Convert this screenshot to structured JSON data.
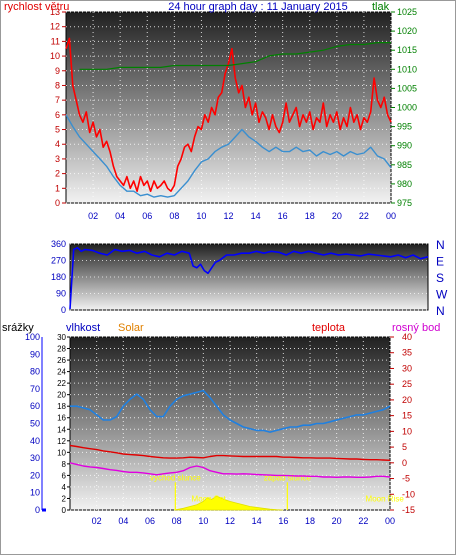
{
  "chart_data": [
    {
      "type": "line",
      "title": "24 hour graph day : 11 January 2015",
      "left_axis_label": "rychlost větru",
      "right_axis_label": "tlak",
      "y_left_lim": [
        0,
        13
      ],
      "y_left_ticks": [
        "0",
        "1",
        "2",
        "3",
        "4",
        "5",
        "6",
        "7",
        "8",
        "9",
        "10",
        "11",
        "12",
        "13"
      ],
      "y_right_lim": [
        975,
        1025
      ],
      "y_right_ticks": [
        "975",
        "980",
        "985",
        "990",
        "995",
        "1000",
        "1005",
        "1010",
        "1015",
        "1020",
        "1025"
      ],
      "x_lim": [
        0,
        24
      ],
      "x_ticks": [
        "02",
        "04",
        "06",
        "08",
        "10",
        "12",
        "14",
        "16",
        "18",
        "20",
        "22",
        "00"
      ],
      "grid": true,
      "colors": {
        "gust": "#ff0000",
        "average": "#3a8fd0",
        "pressure": "#008000"
      },
      "series": [
        {
          "axis": "left",
          "x": [
            0,
            0.25,
            0.5,
            0.75,
            1,
            1.25,
            1.5,
            1.75,
            2,
            2.25,
            2.5,
            2.75,
            3,
            3.25,
            3.5,
            3.75,
            4,
            4.25,
            4.5,
            4.75,
            5,
            5.25,
            5.5,
            5.75,
            6,
            6.25,
            6.5,
            6.75,
            7,
            7.25,
            7.5,
            7.75,
            8,
            8.25,
            8.5,
            8.75,
            9,
            9.25,
            9.5,
            9.75,
            10,
            10.25,
            10.5,
            10.75,
            11,
            11.25,
            11.5,
            11.75,
            12,
            12.25,
            12.5,
            12.75,
            13,
            13.25,
            13.5,
            13.75,
            14,
            14.25,
            14.5,
            14.75,
            15,
            15.25,
            15.5,
            15.75,
            16,
            16.25,
            16.5,
            16.75,
            17,
            17.25,
            17.5,
            17.75,
            18,
            18.25,
            18.5,
            18.75,
            19,
            19.25,
            19.5,
            19.75,
            20,
            20.25,
            20.5,
            20.75,
            21,
            21.25,
            21.5,
            21.75,
            22,
            22.25,
            22.5,
            22.75,
            23,
            23.25,
            23.5,
            23.75,
            24
          ],
          "y": [
            10.5,
            11.2,
            8,
            7,
            6,
            5.5,
            6.2,
            4.8,
            5.5,
            4.5,
            5,
            3.8,
            4.2,
            3.5,
            2.5,
            1.8,
            1.5,
            1.2,
            1.8,
            1,
            1.5,
            0.8,
            1.8,
            1.2,
            1.5,
            0.8,
            1.5,
            1,
            1.2,
            1.5,
            1,
            0.8,
            1.2,
            2.5,
            3,
            3.8,
            4,
            3.5,
            4.5,
            5.2,
            5,
            6,
            5.5,
            6.5,
            6,
            7.2,
            7.5,
            8.8,
            9.5,
            10.5,
            8.5,
            7.5,
            8,
            6.5,
            7.2,
            6,
            6.8,
            5.5,
            6.2,
            5.8,
            5,
            6,
            5.2,
            4.8,
            5.5,
            6.8,
            5.5,
            6,
            6.5,
            5.2,
            6,
            5.5,
            6.2,
            5,
            5.8,
            5.5,
            6.8,
            5.2,
            6,
            5.5,
            6.2,
            5,
            5.8,
            5.2,
            6.5,
            5.5,
            6,
            5,
            5.8,
            5.5,
            6.2,
            8.5,
            7,
            6.5,
            7.2,
            6,
            5.5
          ]
        },
        {
          "axis": "left",
          "x": [
            0,
            0.5,
            1,
            1.5,
            2,
            2.5,
            3,
            3.5,
            4,
            4.5,
            5,
            5.5,
            6,
            6.5,
            7,
            7.5,
            8,
            8.5,
            9,
            9.5,
            10,
            10.5,
            11,
            11.5,
            12,
            12.5,
            13,
            13.5,
            14,
            14.5,
            15,
            15.5,
            16,
            16.5,
            17,
            17.5,
            18,
            18.5,
            19,
            19.5,
            20,
            20.5,
            21,
            21.5,
            22,
            22.5,
            23,
            23.5,
            24
          ],
          "y": [
            6,
            5.2,
            4.5,
            4,
            3.5,
            3,
            2.5,
            1.8,
            1.2,
            0.8,
            0.8,
            0.5,
            0.6,
            0.4,
            0.5,
            0.4,
            0.5,
            1,
            1.5,
            2.2,
            2.8,
            3,
            3.5,
            3.8,
            4,
            4.5,
            5,
            4.5,
            4.2,
            3.8,
            3.5,
            3.8,
            3.5,
            3.5,
            3.8,
            3.5,
            3.6,
            3.2,
            3.5,
            3.3,
            3.5,
            3.2,
            3.5,
            3.3,
            3.4,
            3.8,
            3.2,
            3,
            2.4
          ]
        },
        {
          "axis": "right",
          "x": [
            1,
            2,
            3,
            4,
            5,
            6,
            7,
            8,
            9,
            10,
            11,
            12,
            13,
            14,
            15,
            16,
            17,
            18,
            19,
            20,
            21,
            22,
            23,
            24
          ],
          "y": [
            1010,
            1010,
            1010,
            1010.5,
            1010.5,
            1010.5,
            1010.5,
            1011,
            1011,
            1011,
            1011,
            1011,
            1011.5,
            1012,
            1013.5,
            1014,
            1014,
            1014.5,
            1015,
            1016,
            1016.5,
            1016.5,
            1017,
            1017
          ]
        }
      ]
    },
    {
      "type": "line",
      "y_lim": [
        0,
        360
      ],
      "y_ticks": [
        "0",
        "90",
        "180",
        "270",
        "360"
      ],
      "right_labels": [
        "N",
        "W",
        "S",
        "E",
        "N"
      ],
      "x_lim": [
        0,
        24
      ],
      "colors": {
        "direction": "#0000ff"
      },
      "series": [
        {
          "x": [
            0,
            0.25,
            0.5,
            0.75,
            1,
            1.5,
            2,
            2.5,
            3,
            3.5,
            4,
            4.5,
            5,
            5.5,
            6,
            6.5,
            7,
            7.5,
            8,
            8.25,
            8.5,
            8.75,
            9,
            9.25,
            9.5,
            9.75,
            10,
            10.5,
            11,
            11.5,
            12,
            12.5,
            13,
            13.5,
            14,
            14.5,
            15,
            15.5,
            16,
            16.5,
            17,
            17.5,
            18,
            18.5,
            19,
            19.5,
            20,
            20.5,
            21,
            21.5,
            22,
            22.5,
            23,
            23.5,
            24
          ],
          "y": [
            5,
            330,
            340,
            320,
            330,
            325,
            310,
            300,
            330,
            320,
            325,
            310,
            320,
            300,
            290,
            310,
            300,
            320,
            310,
            240,
            230,
            250,
            215,
            200,
            230,
            260,
            270,
            300,
            300,
            310,
            310,
            320,
            310,
            320,
            315,
            300,
            320,
            310,
            320,
            310,
            300,
            310,
            300,
            305,
            300,
            295,
            305,
            300,
            295,
            290,
            300,
            285,
            300,
            280,
            290
          ]
        }
      ]
    },
    {
      "type": "line",
      "left_labels": [
        "srážky",
        "vlhkost",
        "Solar"
      ],
      "right_labels": [
        "teplota",
        "rosný bod"
      ],
      "precip_lim": [
        0,
        100
      ],
      "precip_ticks": [
        "0",
        "10",
        "20",
        "30",
        "40",
        "50",
        "60",
        "70",
        "80",
        "90",
        "100"
      ],
      "humidity_lim": [
        0,
        30
      ],
      "humidity_ticks": [
        "0",
        "2",
        "4",
        "6",
        "8",
        "10",
        "12",
        "14",
        "16",
        "18",
        "20",
        "22",
        "24",
        "26",
        "28",
        "30"
      ],
      "temp_lim": [
        -15,
        40
      ],
      "temp_ticks": [
        "-15",
        "-10",
        "-5",
        "0",
        "5",
        "10",
        "15",
        "20",
        "25",
        "30",
        "35",
        "40"
      ],
      "x_lim": [
        0,
        24
      ],
      "x_ticks": [
        "02",
        "04",
        "06",
        "08",
        "10",
        "12",
        "14",
        "16",
        "18",
        "20",
        "22",
        "00"
      ],
      "grid": true,
      "annotations": [
        {
          "label": "východ slunce",
          "x": 7.9
        },
        {
          "label": "západ slunce",
          "x": 16.3
        },
        {
          "label": "Moon Set",
          "x": 10.4
        },
        {
          "label": "Moon Rise",
          "x": 23.6
        }
      ],
      "colors": {
        "humidity": "#2080e0",
        "temperature": "#e00000",
        "dewpoint": "#e000e0",
        "solar": "#ffff00",
        "sun_lines": "#ffff00"
      },
      "series": [
        {
          "scale": "precip",
          "x": [
            0,
            0.5,
            1,
            1.5,
            2,
            2.5,
            3,
            3.5,
            4,
            4.5,
            5,
            5.5,
            6,
            6.5,
            7,
            7.5,
            8,
            8.5,
            9,
            9.5,
            10,
            10.5,
            11,
            11.5,
            12,
            12.5,
            13,
            13.5,
            14,
            14.5,
            15,
            15.5,
            16,
            16.5,
            17,
            17.5,
            18,
            18.5,
            19,
            19.5,
            20,
            20.5,
            21,
            21.5,
            22,
            22.5,
            23,
            23.5,
            24
          ],
          "y": [
            60,
            60,
            59,
            58,
            55,
            52,
            52,
            54,
            60,
            64,
            67,
            64,
            58,
            54,
            54,
            60,
            64,
            66,
            67,
            68,
            69,
            65,
            60,
            55,
            52,
            50,
            48,
            47,
            46,
            46,
            45,
            46,
            47,
            48,
            48,
            49,
            49,
            50,
            50,
            51,
            52,
            53,
            54,
            55,
            55,
            56,
            57,
            58,
            60
          ]
        },
        {
          "scale": "temp",
          "x": [
            0,
            0.5,
            1,
            1.5,
            2,
            2.5,
            3,
            3.5,
            4,
            4.5,
            5,
            5.5,
            6,
            6.5,
            7,
            7.5,
            8,
            8.5,
            9,
            9.5,
            10,
            10.5,
            11,
            11.5,
            12,
            12.5,
            13,
            13.5,
            14,
            14.5,
            15,
            15.5,
            16,
            16.5,
            17,
            17.5,
            18,
            18.5,
            19,
            19.5,
            20,
            20.5,
            21,
            21.5,
            22,
            22.5,
            23,
            23.5,
            24
          ],
          "y": [
            5.5,
            5.2,
            4.8,
            4.5,
            4.2,
            3.8,
            3.5,
            3.2,
            2.8,
            2.6,
            2.5,
            2.3,
            2,
            1.8,
            1.6,
            1.5,
            1.5,
            1.6,
            1.8,
            1.7,
            1.6,
            2,
            2.3,
            2.3,
            2.2,
            2.1,
            2,
            2,
            2,
            2,
            2,
            2,
            1.8,
            1.8,
            1.7,
            1.6,
            1.6,
            1.5,
            1.5,
            1.5,
            1.4,
            1.3,
            1.2,
            1.2,
            1.1,
            1,
            1,
            0.9,
            0.8
          ]
        },
        {
          "scale": "temp",
          "x": [
            0,
            0.5,
            1,
            1.5,
            2,
            2.5,
            3,
            3.5,
            4,
            4.5,
            5,
            5.5,
            6,
            6.5,
            7,
            7.5,
            8,
            8.5,
            9,
            9.5,
            10,
            10.5,
            11,
            11.5,
            12,
            12.5,
            13,
            13.5,
            14,
            14.5,
            15,
            15.5,
            16,
            16.5,
            17,
            17.5,
            18,
            18.5,
            19,
            19.5,
            20,
            20.5,
            21,
            21.5,
            22,
            22.5,
            23,
            23.5,
            24
          ],
          "y": [
            0,
            -0.5,
            -1,
            -1.3,
            -1.5,
            -1.8,
            -2.2,
            -2.4,
            -2.8,
            -3,
            -3,
            -3.2,
            -3.5,
            -3.8,
            -3.5,
            -3.2,
            -3,
            -2.5,
            -1.5,
            -1,
            -1.5,
            -2.5,
            -3,
            -3.5,
            -3.5,
            -3.6,
            -3.5,
            -3.6,
            -3.7,
            -3.8,
            -3.9,
            -4,
            -4,
            -4.1,
            -4.2,
            -4.2,
            -4.3,
            -4.3,
            -4.5,
            -4.5,
            -4.6,
            -4.5,
            -4.5,
            -4.6,
            -4.6,
            -4.5,
            -4.3,
            -4.3,
            -4.5
          ]
        },
        {
          "scale": "precip",
          "x": [
            7.8,
            8.5,
            9,
            9.5,
            10,
            10.3,
            10.6,
            11,
            11.3,
            11.6,
            12,
            12.5,
            13,
            13.5,
            14,
            14.5,
            15,
            15.5,
            16
          ],
          "y": [
            0,
            1,
            2,
            3,
            5,
            7,
            6,
            8,
            7,
            6,
            5,
            4,
            3,
            2,
            1.5,
            1,
            0.5,
            0.2,
            0
          ]
        }
      ]
    }
  ]
}
